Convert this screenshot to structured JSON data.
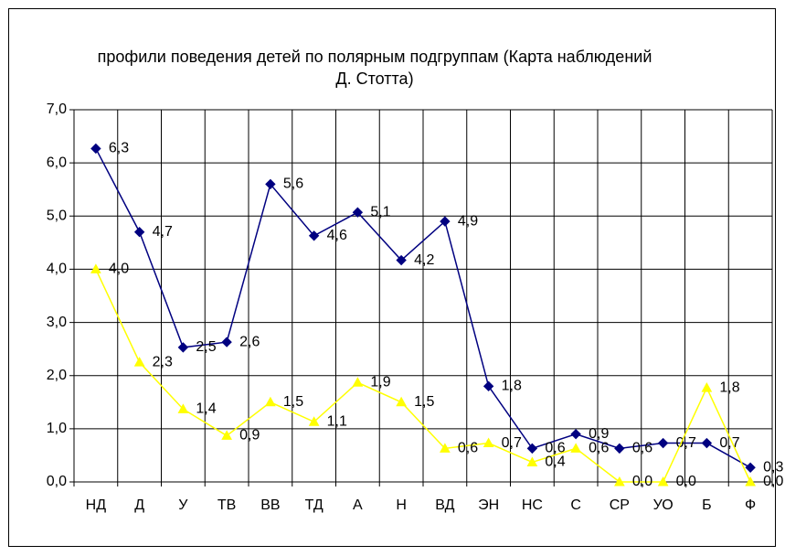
{
  "chart_data": {
    "type": "line",
    "title": "профили поведения детей по полярным подгруппам (Карта наблюдений Д. Стотта)",
    "categories": [
      "НД",
      "Д",
      "У",
      "ТВ",
      "ВВ",
      "ТД",
      "А",
      "Н",
      "ВД",
      "ЭН",
      "НС",
      "С",
      "СР",
      "УО",
      "Б",
      "Ф"
    ],
    "series": [
      {
        "color": "#000080",
        "marker": "diamond",
        "values": [
          6.27,
          4.7,
          2.53,
          2.63,
          5.6,
          4.63,
          5.07,
          4.17,
          4.9,
          1.8,
          0.63,
          0.9,
          0.63,
          0.73,
          0.73,
          0.27
        ],
        "value_labels": [
          "6,3",
          "4,7",
          "2,5",
          "2,6",
          "5,6",
          "4,6",
          "5,1",
          "4,2",
          "4,9",
          "1,8",
          "0,6",
          "0,9",
          "0,6",
          "0,7",
          "0,7",
          "0,3"
        ]
      },
      {
        "color": "#ffff00",
        "marker": "triangle",
        "values": [
          4.0,
          2.25,
          1.37,
          0.87,
          1.5,
          1.13,
          1.87,
          1.5,
          0.63,
          0.73,
          0.37,
          0.63,
          0.0,
          0.0,
          1.77,
          0.0
        ],
        "value_labels": [
          "4,0",
          "2,3",
          "1,4",
          "0,9",
          "1,5",
          "1,1",
          "1,9",
          "1,5",
          "0,6",
          "0,7",
          "0,4",
          "0,6",
          "0,0",
          "0,0",
          "1,8",
          "0,0"
        ]
      }
    ],
    "ylim": [
      0,
      7
    ],
    "yticks": [
      {
        "value": 0,
        "label": "0,0"
      },
      {
        "value": 1,
        "label": "1,0"
      },
      {
        "value": 2,
        "label": "2,0"
      },
      {
        "value": 3,
        "label": "3,0"
      },
      {
        "value": 4,
        "label": "4,0"
      },
      {
        "value": 5,
        "label": "5,0"
      },
      {
        "value": 6,
        "label": "6,0"
      },
      {
        "value": 7,
        "label": "7,0"
      }
    ],
    "grid": true
  }
}
